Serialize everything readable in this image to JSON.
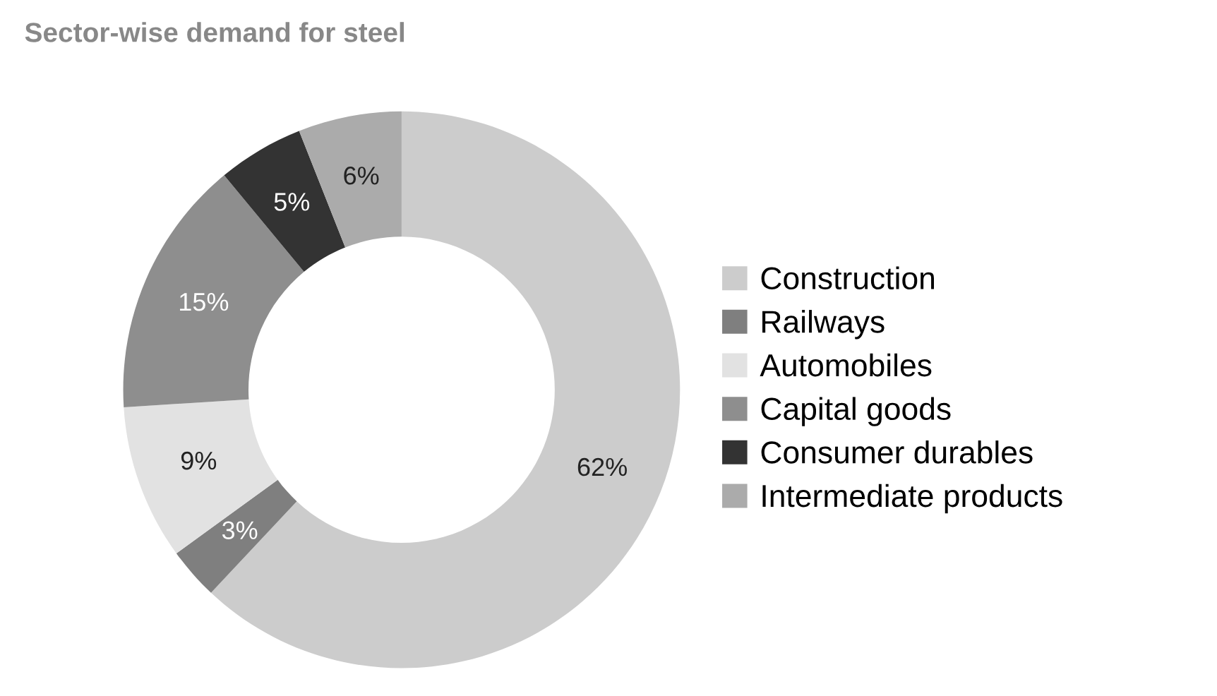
{
  "chart_data": {
    "type": "donut",
    "title": "Sector-wise demand for steel",
    "categories": [
      "Construction",
      "Railways",
      "Automobiles",
      "Capital goods",
      "Consumer durables",
      "Intermediate products"
    ],
    "values": [
      62,
      3,
      9,
      15,
      5,
      6
    ],
    "colors": [
      "#cccccc",
      "#7f7f7f",
      "#e2e2e2",
      "#8e8e8e",
      "#333333",
      "#ababab"
    ],
    "value_labels": [
      "62%",
      "3%",
      "9%",
      "15%",
      "5%",
      "6%"
    ],
    "legend": "right"
  }
}
